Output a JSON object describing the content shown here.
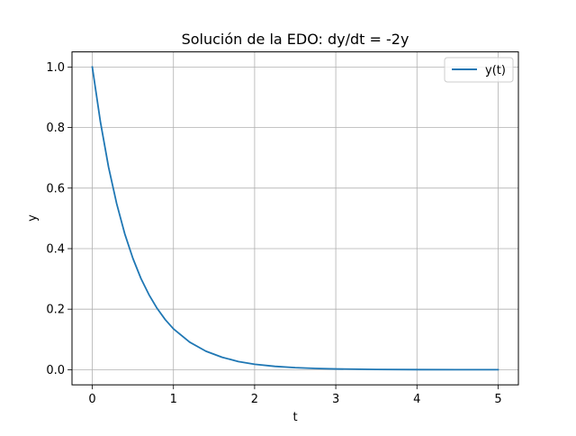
{
  "chart_data": {
    "type": "line",
    "title": "Solución de la EDO: dy/dt = -2y",
    "xlabel": "t",
    "ylabel": "y",
    "xlim": [
      -0.25,
      5.25
    ],
    "ylim": [
      -0.05,
      1.05
    ],
    "xticks": [
      0,
      1,
      2,
      3,
      4,
      5
    ],
    "yticks": [
      0.0,
      0.2,
      0.4,
      0.6,
      0.8,
      1.0
    ],
    "xtick_labels": [
      "0",
      "1",
      "2",
      "3",
      "4",
      "5"
    ],
    "ytick_labels": [
      "0.0",
      "0.2",
      "0.4",
      "0.6",
      "0.8",
      "1.0"
    ],
    "grid": true,
    "legend_position": "upper right",
    "series": [
      {
        "name": "y(t)",
        "color": "#1f77b4",
        "x": [
          0,
          0.1,
          0.2,
          0.3,
          0.4,
          0.5,
          0.6,
          0.7,
          0.8,
          0.9,
          1.0,
          1.2,
          1.4,
          1.6,
          1.8,
          2.0,
          2.25,
          2.5,
          2.75,
          3.0,
          3.5,
          4.0,
          4.5,
          5.0
        ],
        "y": [
          1.0,
          0.819,
          0.67,
          0.549,
          0.449,
          0.368,
          0.301,
          0.247,
          0.202,
          0.165,
          0.135,
          0.091,
          0.061,
          0.041,
          0.027,
          0.018,
          0.011,
          0.0067,
          0.0041,
          0.0025,
          0.0009,
          0.0003,
          0.0001,
          5e-05
        ]
      }
    ]
  }
}
